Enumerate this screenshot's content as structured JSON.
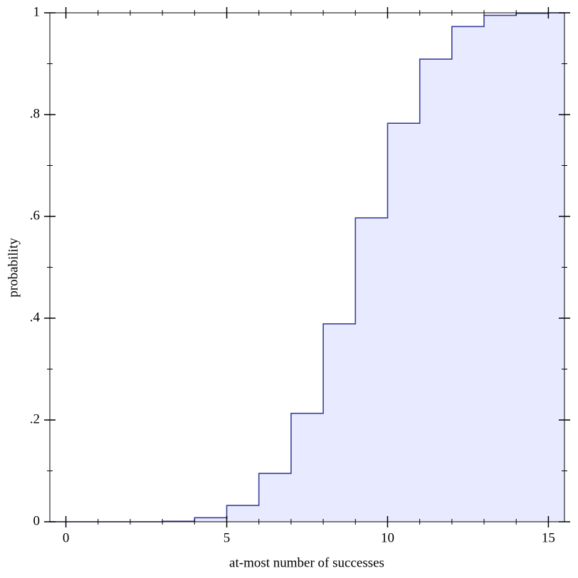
{
  "chart_data": {
    "type": "step",
    "xlabel": "at-most number of successes",
    "ylabel": "probability",
    "x": [
      0,
      1,
      2,
      3,
      4,
      5,
      6,
      7,
      8,
      9,
      10,
      11,
      12,
      13,
      14,
      15
    ],
    "values": [
      0,
      0,
      0,
      0.001,
      0.008,
      0.032,
      0.095,
      0.213,
      0.389,
      0.597,
      0.783,
      0.909,
      0.973,
      0.995,
      0.999,
      1
    ],
    "color": "#3b3ea0",
    "fill_color": "#e8eaff",
    "xlim": [
      -0.5,
      15.5
    ],
    "ylim": [
      0,
      1
    ],
    "xticks": [
      0,
      5,
      10,
      15
    ],
    "xminor_ticks": [
      1,
      2,
      3,
      4,
      6,
      7,
      8,
      9,
      11,
      12,
      13,
      14
    ],
    "yticks": [
      0,
      {
        "value": 0.2,
        "label": ".2"
      },
      {
        "value": 0.4,
        "label": ".4"
      },
      {
        "value": 0.6,
        "label": ".6"
      },
      {
        "value": 0.8,
        "label": ".8"
      },
      1
    ],
    "yminor_ticks": [
      0.1,
      0.3,
      0.5,
      0.7,
      0.9
    ]
  }
}
